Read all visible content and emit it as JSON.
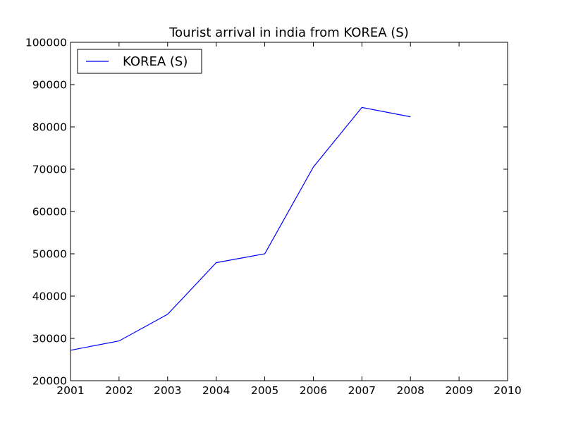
{
  "chart_data": {
    "type": "line",
    "title": "Tourist arrival in india from KOREA (S)",
    "xlabel": "",
    "ylabel": "",
    "xlim": [
      2001,
      2010
    ],
    "ylim": [
      20000,
      100000
    ],
    "x_ticks": [
      "2001",
      "2002",
      "2003",
      "2004",
      "2005",
      "2006",
      "2007",
      "2008",
      "2009",
      "2010"
    ],
    "y_ticks": [
      "20000",
      "30000",
      "40000",
      "50000",
      "60000",
      "70000",
      "80000",
      "90000",
      "100000"
    ],
    "grid": false,
    "legend_position": "top-left",
    "series": [
      {
        "name": "KOREA (S)",
        "color": "#0000ff",
        "x": [
          2001,
          2002,
          2003,
          2004,
          2005,
          2006,
          2007,
          2008
        ],
        "values": [
          27200,
          29400,
          35700,
          47900,
          50000,
          70500,
          84600,
          82400
        ]
      }
    ]
  }
}
